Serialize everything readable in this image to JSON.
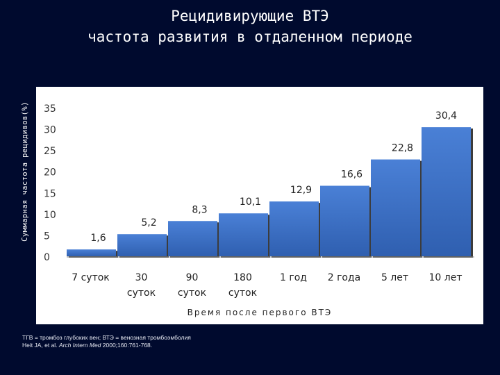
{
  "title_line1": "Рецидивирующие ВТЭ",
  "title_line2": "частота развития в отдаленном периоде",
  "chart_data": {
    "type": "bar",
    "title": "Рецидивирующие ВТЭ частота развития в отдаленном периоде",
    "ylabel": "Суммарная частота рецидивов(%)",
    "xlabel": "Время после первого ВТЭ",
    "ylim": [
      0,
      35
    ],
    "yticks": [
      0,
      5,
      10,
      15,
      20,
      25,
      30,
      35
    ],
    "categories": [
      [
        "7 суток"
      ],
      [
        "30",
        "суток"
      ],
      [
        "90",
        "суток"
      ],
      [
        "180",
        "суток"
      ],
      [
        "1 год"
      ],
      [
        "2 года"
      ],
      [
        "5 лет"
      ],
      [
        "10 лет"
      ]
    ],
    "values": [
      1.6,
      5.2,
      8.3,
      10.1,
      12.9,
      16.6,
      22.8,
      30.4
    ],
    "value_labels": [
      "1,6",
      "5,2",
      "8,3",
      "10,1",
      "12,9",
      "16,6",
      "22,8",
      "30,4"
    ],
    "grid": false,
    "bar_color": "#3f74c9"
  },
  "footnote": {
    "line1": "ТГВ = тромбоз глубоких вен; ВТЭ = венозная тромбоэмболия",
    "line2_prefix": "Heit JA, et al. ",
    "line2_journal": "Arch Intern Med",
    "line2_suffix": " 2000;160:761-768."
  }
}
